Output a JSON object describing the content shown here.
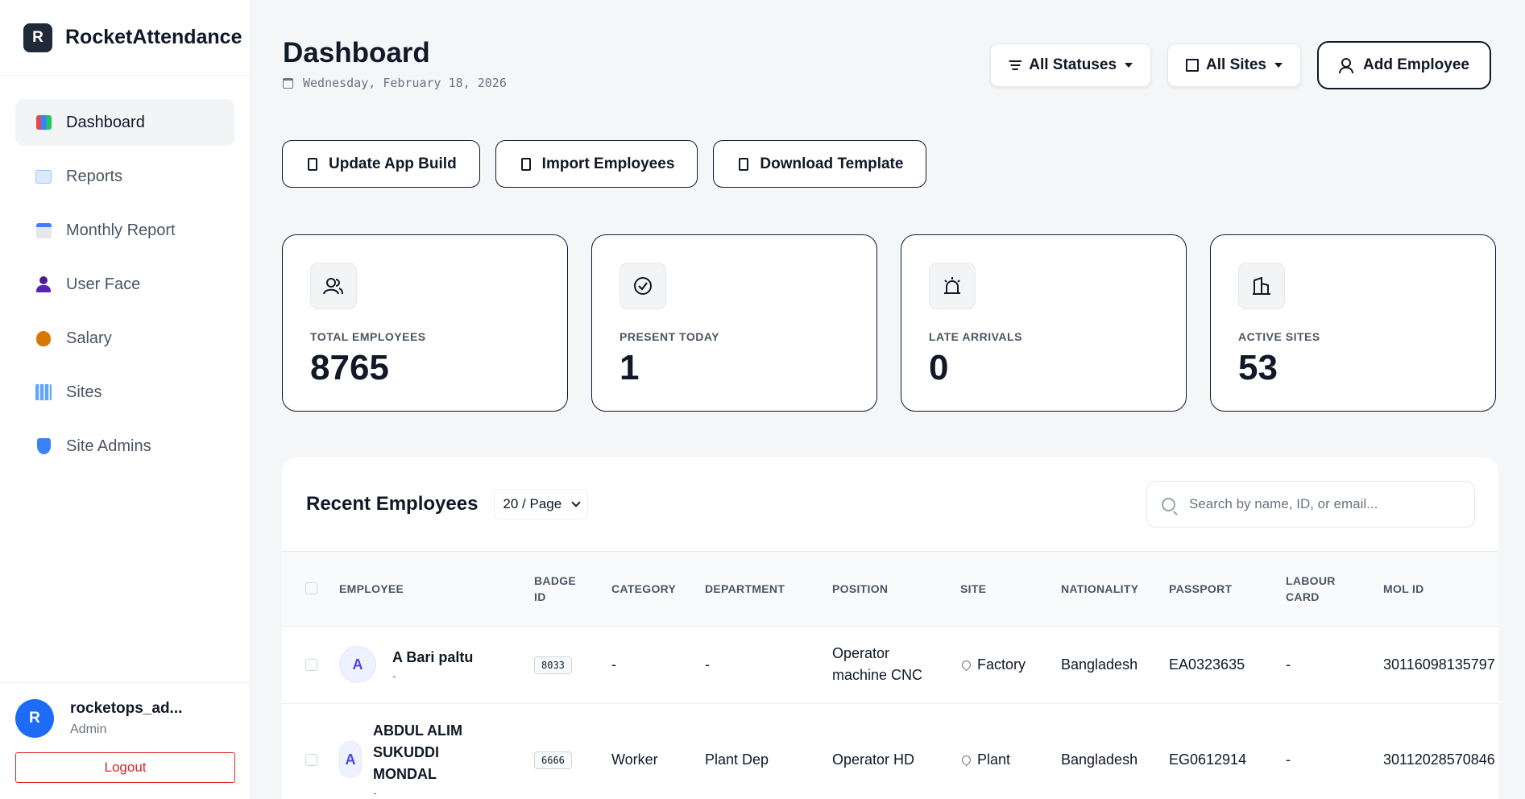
{
  "brand": {
    "logo_letter": "R",
    "name": "RocketAttendance"
  },
  "sidebar": {
    "items": [
      {
        "label": "Dashboard",
        "icon": "bar-chart-icon",
        "active": true
      },
      {
        "label": "Reports",
        "icon": "line-chart-icon"
      },
      {
        "label": "Monthly Report",
        "icon": "calendar-icon"
      },
      {
        "label": "User Face",
        "icon": "user-silhouette-icon"
      },
      {
        "label": "Salary",
        "icon": "money-bag-icon"
      },
      {
        "label": "Sites",
        "icon": "building-icon"
      },
      {
        "label": "Site Admins",
        "icon": "shield-icon"
      }
    ],
    "user": {
      "avatar_letter": "R",
      "name": "rocketops_ad...",
      "role": "Admin"
    },
    "logout_label": "Logout"
  },
  "header": {
    "title": "Dashboard",
    "date": "Wednesday, February 18, 2026",
    "status_filter": "All Statuses",
    "site_filter": "All Sites",
    "add_employee": "Add Employee"
  },
  "actions": {
    "update_build": "Update App Build",
    "import": "Import Employees",
    "download": "Download Template"
  },
  "stats": [
    {
      "label": "TOTAL EMPLOYEES",
      "value": "8765",
      "icon": "users-icon"
    },
    {
      "label": "PRESENT TODAY",
      "value": "1",
      "icon": "check-circle-icon"
    },
    {
      "label": "LATE ARRIVALS",
      "value": "0",
      "icon": "alarm-icon"
    },
    {
      "label": "ACTIVE SITES",
      "value": "53",
      "icon": "building-icon"
    }
  ],
  "table": {
    "title": "Recent Employees",
    "per_page": "20 / Page",
    "search_placeholder": "Search by name, ID, or email...",
    "columns": {
      "employee": "EMPLOYEE",
      "badge_id": "BADGE ID",
      "category": "CATEGORY",
      "department": "DEPARTMENT",
      "position": "POSITION",
      "site": "SITE",
      "nationality": "NATIONALITY",
      "passport": "PASSPORT",
      "labour_card": "LABOUR CARD",
      "mol_id": "MOL ID"
    },
    "rows": [
      {
        "avatar": "A",
        "name": "A Bari paltu",
        "sub": "-",
        "badge": "8033",
        "category": "-",
        "department": "-",
        "position": "Operator machine CNC",
        "site": "Factory",
        "nationality": "Bangladesh",
        "passport": "EA0323635",
        "labour_card": "-",
        "mol_id": "30116098135797"
      },
      {
        "avatar": "A",
        "name": "ABDUL ALIM SUKUDDI MONDAL",
        "sub": "-",
        "badge": "6666",
        "category": "Worker",
        "department": "Plant Dep",
        "position": "Operator HD",
        "site": "Plant",
        "nationality": "Bangladesh",
        "passport": "EG0612914",
        "labour_card": "-",
        "mol_id": "30112028570846"
      }
    ]
  }
}
